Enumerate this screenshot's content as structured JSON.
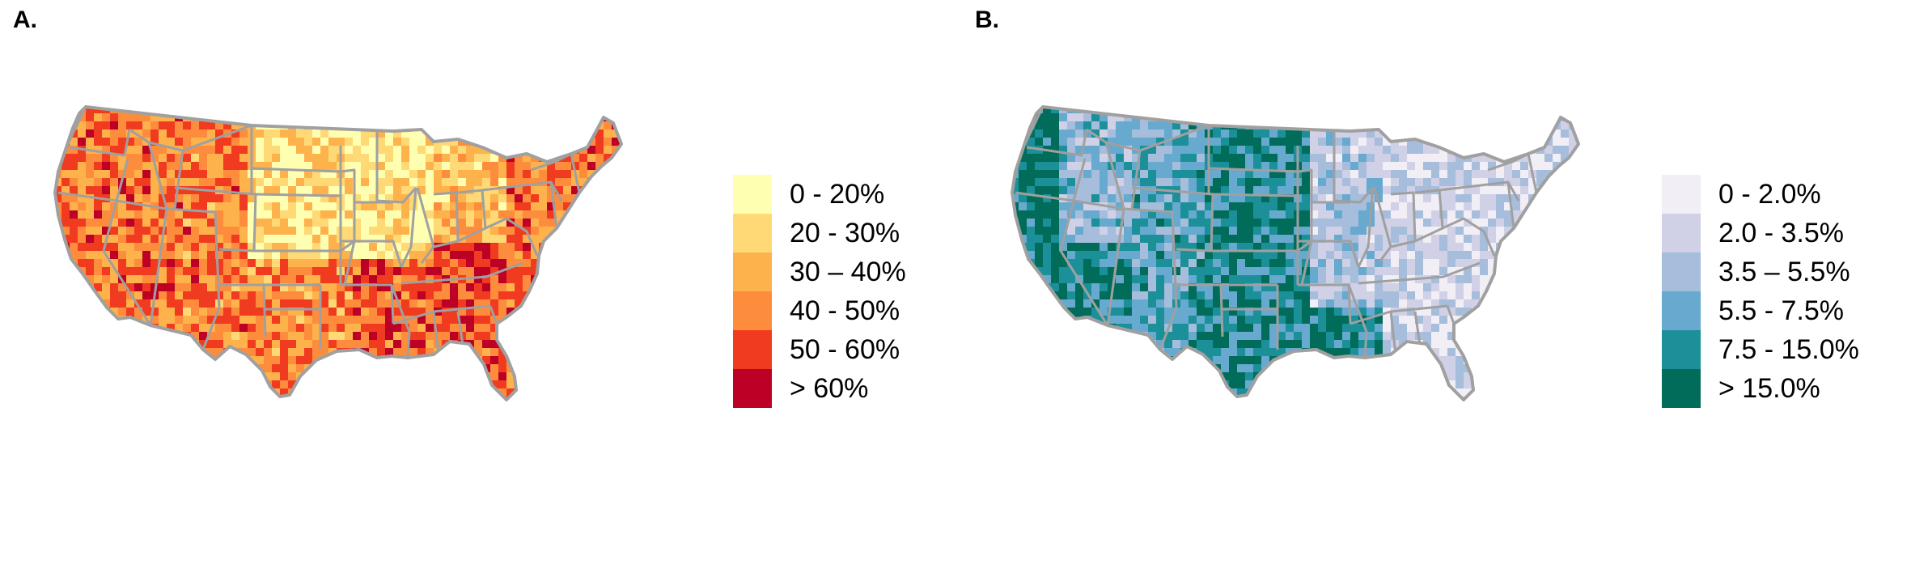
{
  "panels": [
    {
      "label": "A.",
      "legend": [
        {
          "label": "0 - 20%",
          "color": "#ffffb2"
        },
        {
          "label": "20 - 30%",
          "color": "#fed976"
        },
        {
          "label": "30 – 40%",
          "color": "#feb24c"
        },
        {
          "label": "40 - 50%",
          "color": "#fd8d3c"
        },
        {
          "label": "50 - 60%",
          "color": "#f03b20"
        },
        {
          "label": "> 60%",
          "color": "#bd0026"
        }
      ]
    },
    {
      "label": "B.",
      "legend": [
        {
          "label": "0 - 2.0%",
          "color": "#f1eef6"
        },
        {
          "label": "2.0 - 3.5%",
          "color": "#d0d1e6"
        },
        {
          "label": "3.5 – 5.5%",
          "color": "#a6bddb"
        },
        {
          "label": "5.5 - 7.5%",
          "color": "#67a9cf"
        },
        {
          "label": "7.5 - 15.0%",
          "color": "#1c9099"
        },
        {
          "label": "> 15.0%",
          "color": "#016c59"
        }
      ]
    }
  ],
  "map": {
    "state_border_color": "#a0a0a0"
  }
}
